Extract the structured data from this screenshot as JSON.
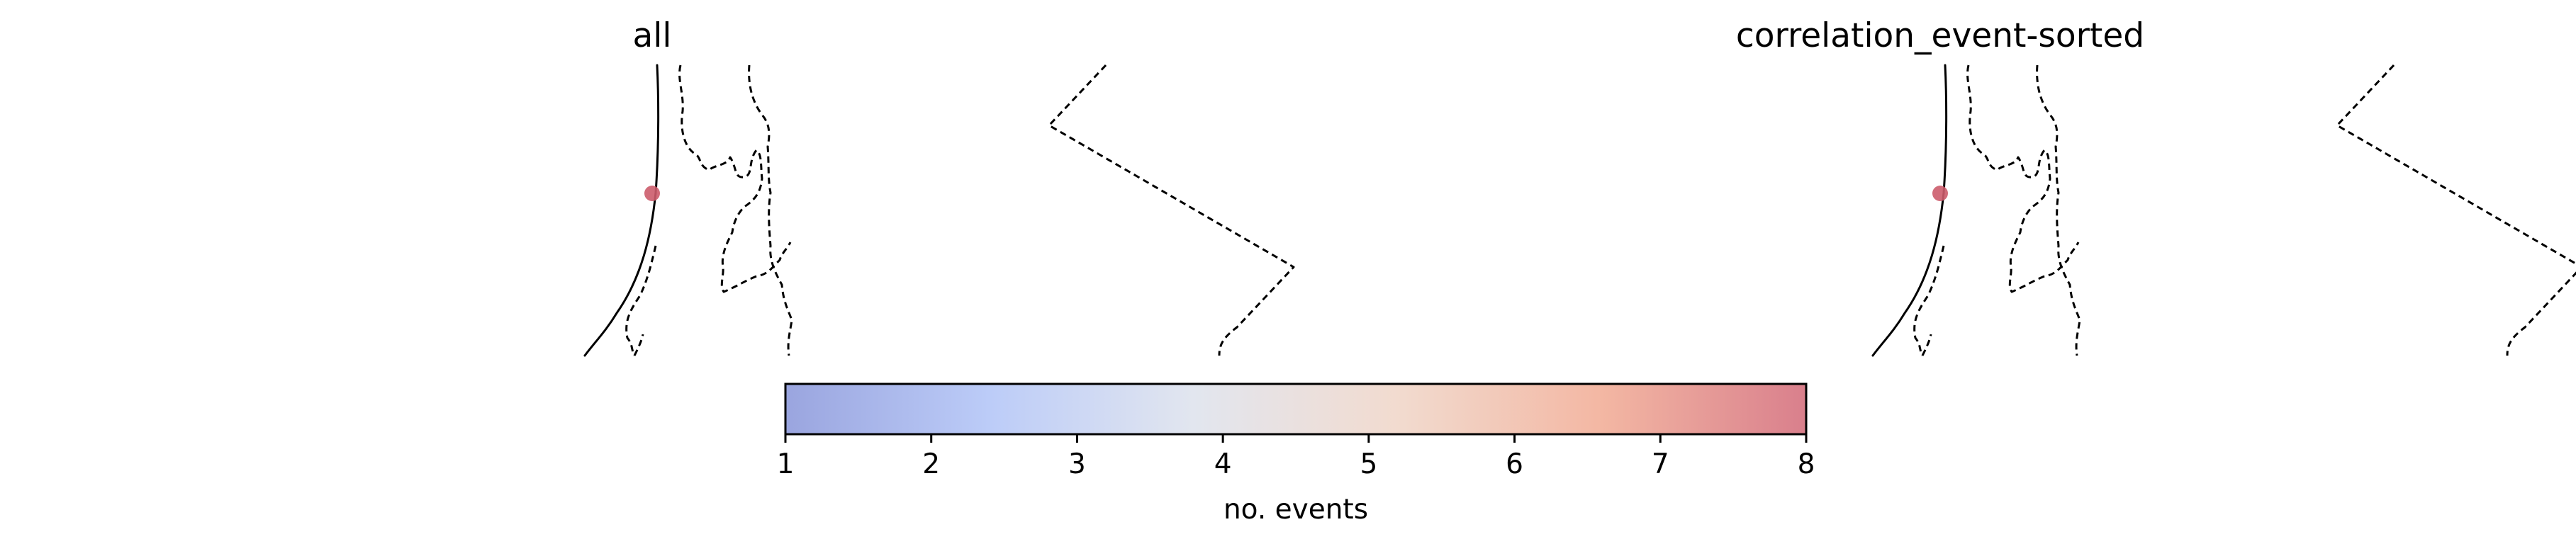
{
  "chart_data": [
    {
      "type": "scatter",
      "title": "all",
      "series": [
        {
          "points": [
            {
              "value": 8
            }
          ]
        }
      ],
      "grid": false
    },
    {
      "type": "scatter",
      "title": "correlation_event-sorted",
      "series": [
        {
          "points": [
            {
              "value": 8
            }
          ]
        }
      ],
      "grid": false
    }
  ],
  "colorbar": {
    "label": "no. events",
    "min": 1,
    "max": 8,
    "ticks": [
      "1",
      "2",
      "3",
      "4",
      "5",
      "6",
      "7",
      "8"
    ],
    "colors": [
      "#9aa5df",
      "#bcccf8",
      "#e2e6ef",
      "#f2dbcf",
      "#f3b7a3",
      "#d97f8c"
    ]
  },
  "marker_color": "#cc5c6c"
}
